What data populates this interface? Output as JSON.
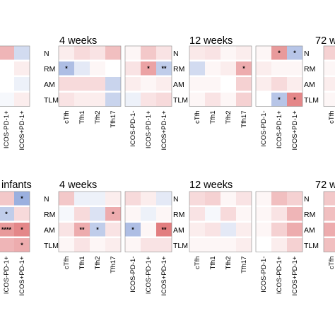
{
  "figure": {
    "top_row_titles": [
      "4 weeks",
      "12 weeks",
      "72 w"
    ],
    "bottom_row_titles": [
      "infants",
      "4 weeks",
      "12 weeks",
      "72 w"
    ]
  },
  "chart_data": [
    {
      "type": "heatmap",
      "panel": "top-left (cropped)",
      "rows": [
        "N",
        "RM",
        "AM",
        "TLM"
      ],
      "columns": [
        "ICOS-PD-1+",
        "ICOS+PD-1+"
      ],
      "values": [
        [
          0.4,
          -0.25
        ],
        [
          0,
          0.1
        ],
        [
          0,
          -0.1
        ],
        [
          -0.05,
          0.1
        ]
      ],
      "significance": [
        [
          "",
          ""
        ],
        [
          "",
          ""
        ],
        [
          "",
          ""
        ],
        [
          "",
          ""
        ]
      ]
    },
    {
      "type": "heatmap",
      "panel": "4 weeks (top)",
      "title": "4 weeks",
      "rows": [
        "N",
        "RM",
        "AM",
        "TLM"
      ],
      "columns": [
        "cTfh",
        "Tfh1",
        "Tfh2",
        "Tfh17",
        "ICOS-PD-1-",
        "ICOS-PD-1+",
        "ICOS+PD-1+"
      ],
      "values": [
        [
          0.1,
          0.2,
          0.15,
          0.35,
          0.05,
          0.3,
          0.15
        ],
        [
          -0.45,
          -0.15,
          0.05,
          0,
          0.15,
          0.5,
          -0.35
        ],
        [
          0.2,
          0.2,
          0.2,
          -0.3,
          0.1,
          0.05,
          0.1
        ],
        [
          0.15,
          0.1,
          0.1,
          -0.3,
          -0.1,
          0.15,
          0.2
        ]
      ],
      "significance": [
        [
          "",
          "",
          "",
          "",
          "",
          "",
          ""
        ],
        [
          "*",
          "",
          "",
          "",
          "",
          "*",
          "**"
        ],
        [
          "",
          "",
          "",
          "",
          "",
          "",
          ""
        ],
        [
          "",
          "",
          "",
          "",
          "",
          "",
          ""
        ]
      ]
    },
    {
      "type": "heatmap",
      "panel": "12 weeks (top)",
      "title": "12 weeks",
      "rows": [
        "N",
        "RM",
        "AM",
        "TLM"
      ],
      "columns": [
        "cTfh",
        "Tfh1",
        "Tfh2",
        "Tfh17",
        "ICOS-PD-1-",
        "ICOS-PD-1+",
        "ICOS+PD-1+"
      ],
      "values": [
        [
          0.12,
          0.15,
          0.05,
          0.1,
          0.05,
          0.55,
          -0.4
        ],
        [
          -0.25,
          0.05,
          0.1,
          0.45,
          0.1,
          0.05,
          0.05
        ],
        [
          0.05,
          0.05,
          0,
          0.25,
          0.1,
          0.2,
          0.1
        ],
        [
          0.05,
          0.15,
          0.05,
          0.25,
          0,
          -0.4,
          0.65
        ]
      ],
      "significance": [
        [
          "",
          "",
          "",
          "",
          "",
          "*",
          "*"
        ],
        [
          "",
          "",
          "",
          "*",
          "",
          "",
          ""
        ],
        [
          "",
          "",
          "",
          "",
          "",
          "",
          ""
        ],
        [
          "",
          "",
          "",
          "",
          "",
          "*",
          "*"
        ]
      ]
    },
    {
      "type": "heatmap",
      "panel": "infants (bottom-left, cropped)",
      "rows": [
        "N",
        "RM",
        "AM",
        "TLM"
      ],
      "columns": [
        "ICOS-PD-1+",
        "ICOS+PD-1+"
      ],
      "values": [
        [
          0.3,
          -0.55
        ],
        [
          -0.35,
          0.2
        ],
        [
          0.55,
          0.65
        ],
        [
          0.4,
          0.45
        ]
      ],
      "significance": [
        [
          "",
          "*"
        ],
        [
          "*",
          ""
        ],
        [
          "****",
          "*"
        ],
        [
          "",
          "*"
        ]
      ]
    },
    {
      "type": "heatmap",
      "panel": "4 weeks (bottom)",
      "title": "4 weeks",
      "rows": [
        "N",
        "RM",
        "AM",
        "TLM"
      ],
      "columns": [
        "cTfh",
        "Tfh1",
        "Tfh2",
        "Tfh17",
        "ICOS-PD-1-",
        "ICOS-PD-1+",
        "ICOS+PD-1+"
      ],
      "values": [
        [
          0.3,
          -0.1,
          -0.1,
          0.1,
          0.2,
          0.1,
          -0.15
        ],
        [
          -0.05,
          0.2,
          -0.2,
          0.45,
          0.05,
          -0.1,
          0.05
        ],
        [
          0.15,
          0.45,
          -0.35,
          0.15,
          -0.45,
          0.05,
          0.7
        ],
        [
          0.05,
          0.15,
          0.05,
          0.1,
          0.05,
          0.15,
          0.15
        ]
      ],
      "significance": [
        [
          "",
          "",
          "",
          "",
          "",
          "",
          ""
        ],
        [
          "",
          "",
          "",
          "*",
          "",
          "",
          ""
        ],
        [
          "",
          "**",
          "*",
          "",
          "*",
          "",
          "**"
        ],
        [
          "",
          "",
          "",
          "",
          "",
          "",
          ""
        ]
      ]
    },
    {
      "type": "heatmap",
      "panel": "12 weeks (bottom)",
      "title": "12 weeks",
      "rows": [
        "N",
        "RM",
        "AM",
        "TLM"
      ],
      "columns": [
        "cTfh",
        "Tfh1",
        "Tfh2",
        "Tfh17",
        "ICOS-PD-1-",
        "ICOS-PD-1+",
        "ICOS+PD-1+"
      ],
      "values": [
        [
          0.2,
          0.25,
          0.05,
          0.15,
          0.05,
          0.35,
          0.25
        ],
        [
          0.15,
          -0.05,
          0.2,
          0.05,
          0.05,
          0.15,
          0.4
        ],
        [
          0.1,
          0.15,
          -0.15,
          0.1,
          0.05,
          0.25,
          0.45
        ],
        [
          0.05,
          0.05,
          0.05,
          0.1,
          0,
          0.1,
          0.25
        ]
      ],
      "significance": [
        [
          "",
          "",
          "",
          "",
          "",
          "",
          ""
        ],
        [
          "",
          "",
          "",
          "",
          "",
          "",
          ""
        ],
        [
          "",
          "",
          "",
          "",
          "",
          "",
          ""
        ],
        [
          "",
          "",
          "",
          "",
          "",
          "",
          ""
        ]
      ]
    },
    {
      "type": "heatmap",
      "panel": "72 w (top, cropped)",
      "title": "72 w",
      "rows": [
        "N",
        "RM",
        "AM",
        "TLM"
      ],
      "columns": [
        "cTfh"
      ],
      "values": [
        [
          0.25
        ],
        [
          0.05
        ],
        [
          0.1
        ],
        [
          0.05
        ]
      ],
      "significance": [
        [
          ""
        ],
        [
          ""
        ],
        [
          ""
        ],
        [
          ""
        ]
      ]
    },
    {
      "type": "heatmap",
      "panel": "72 w (bottom, cropped)",
      "title": "72 w",
      "rows": [
        "N",
        "RM",
        "AM",
        "TLM"
      ],
      "columns": [
        "cTfh"
      ],
      "values": [
        [
          0.3
        ],
        [
          0.35
        ],
        [
          0.45
        ],
        [
          0.35
        ]
      ],
      "significance": [
        [
          ""
        ],
        [
          ""
        ],
        [
          ""
        ],
        [
          ""
        ]
      ]
    }
  ],
  "colors": {
    "positive": "#d6474a",
    "negative": "#4a6fc4",
    "neutral": "#ffffff",
    "border": "#888888"
  }
}
